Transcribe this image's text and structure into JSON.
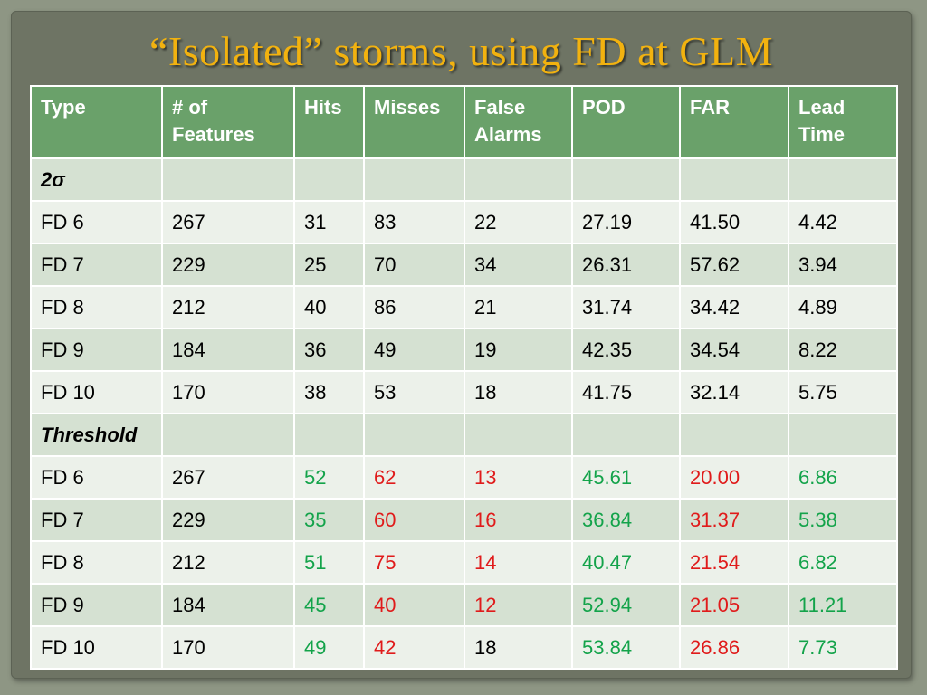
{
  "title": "“Isolated” storms, using FD at GLM",
  "colors": {
    "title": "#f2b20f",
    "header": "#6aa16a",
    "good": "#13a34a",
    "bad": "#e01b1b"
  },
  "table": {
    "headers": [
      "Type",
      "# of Features",
      "Hits",
      "Misses",
      "False Alarms",
      "POD",
      "FAR",
      "Lead Time"
    ],
    "sections": [
      {
        "label": "2σ",
        "rows": [
          [
            "FD 6",
            "267",
            "31",
            "83",
            "22",
            "27.19",
            "41.50",
            "4.42"
          ],
          [
            "FD 7",
            "229",
            "25",
            "70",
            "34",
            "26.31",
            "57.62",
            "3.94"
          ],
          [
            "FD 8",
            "212",
            "40",
            "86",
            "21",
            "31.74",
            "34.42",
            "4.89"
          ],
          [
            "FD 9",
            "184",
            "36",
            "49",
            "19",
            "42.35",
            "34.54",
            "8.22"
          ],
          [
            "FD 10",
            "170",
            "38",
            "53",
            "18",
            "41.75",
            "32.14",
            "5.75"
          ]
        ],
        "colors": [
          [
            "",
            "",
            "",
            "",
            "",
            "",
            "",
            ""
          ],
          [
            "",
            "",
            "",
            "",
            "",
            "",
            "",
            ""
          ],
          [
            "",
            "",
            "",
            "",
            "",
            "",
            "",
            ""
          ],
          [
            "",
            "",
            "",
            "",
            "",
            "",
            "",
            ""
          ],
          [
            "",
            "",
            "",
            "",
            "",
            "",
            "",
            ""
          ]
        ]
      },
      {
        "label": "Threshold",
        "rows": [
          [
            "FD 6",
            "267",
            "52",
            "62",
            "13",
            "45.61",
            "20.00",
            "6.86"
          ],
          [
            "FD 7",
            "229",
            "35",
            "60",
            "16",
            "36.84",
            "31.37",
            "5.38"
          ],
          [
            "FD 8",
            "212",
            "51",
            "75",
            "14",
            "40.47",
            "21.54",
            "6.82"
          ],
          [
            "FD 9",
            "184",
            "45",
            "40",
            "12",
            "52.94",
            "21.05",
            "11.21"
          ],
          [
            "FD 10",
            "170",
            "49",
            "42",
            "18",
            "53.84",
            "26.86",
            "7.73"
          ]
        ],
        "colors": [
          [
            "",
            "",
            "g",
            "r",
            "r",
            "g",
            "r",
            "g"
          ],
          [
            "",
            "",
            "g",
            "r",
            "r",
            "g",
            "r",
            "g"
          ],
          [
            "",
            "",
            "g",
            "r",
            "r",
            "g",
            "r",
            "g"
          ],
          [
            "",
            "",
            "g",
            "r",
            "r",
            "g",
            "r",
            "g"
          ],
          [
            "",
            "",
            "g",
            "r",
            "",
            "g",
            "r",
            "g"
          ]
        ]
      }
    ]
  }
}
